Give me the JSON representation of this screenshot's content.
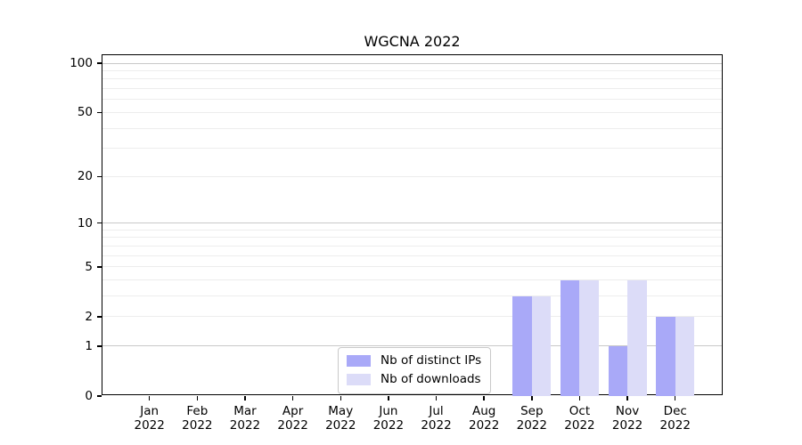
{
  "chart_data": {
    "type": "bar",
    "title": "WGCNA 2022",
    "categories": [
      "Jan",
      "Feb",
      "Mar",
      "Apr",
      "May",
      "Jun",
      "Jul",
      "Aug",
      "Sep",
      "Oct",
      "Nov",
      "Dec"
    ],
    "category_year": "2022",
    "series": [
      {
        "name": "Nb of distinct IPs",
        "color": "#a9a9f8",
        "values": [
          0,
          0,
          0,
          0,
          0,
          0,
          0,
          0,
          3,
          4,
          1,
          2
        ]
      },
      {
        "name": "Nb of downloads",
        "color": "#dcdcf8",
        "values": [
          0,
          0,
          0,
          0,
          0,
          0,
          0,
          0,
          3,
          4,
          4,
          2
        ]
      }
    ],
    "xlabel": "",
    "ylabel": "",
    "yscale": "log1p",
    "ylim": [
      0,
      112
    ],
    "y_ticks": [
      0,
      1,
      2,
      5,
      10,
      20,
      50,
      100
    ],
    "gridlines": {
      "decade_values": [
        1,
        10,
        100
      ],
      "minor_values": [
        2,
        3,
        4,
        5,
        6,
        7,
        8,
        9,
        20,
        30,
        40,
        50,
        60,
        70,
        80,
        90
      ],
      "decade_color": "#c8c8c8",
      "minor_color": "#ededed"
    },
    "legend_position": "lower center"
  }
}
